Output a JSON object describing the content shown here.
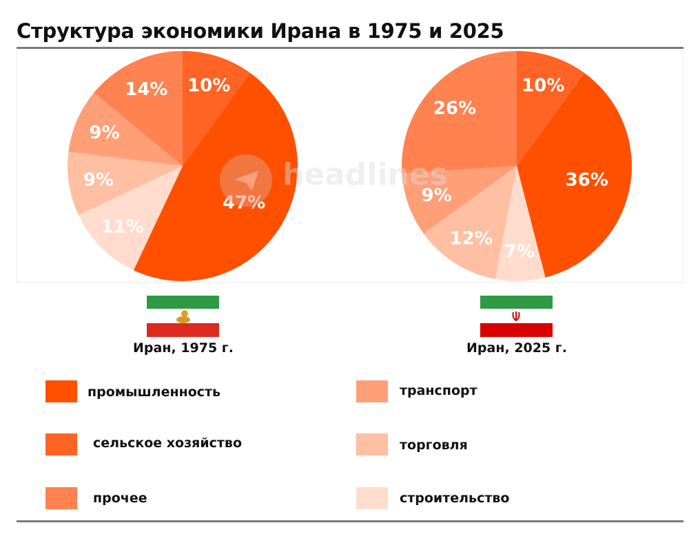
{
  "title": "Структура экономики Ирана в 1975 и 2025",
  "watermark": "headlines",
  "chart_data": {
    "type": "pie",
    "title": "Структура экономики Ирана в 1975 и 2025",
    "categories": [
      "сельское хозяйство",
      "промышленность",
      "строительство",
      "торговля",
      "транспорт",
      "прочее"
    ],
    "colors": {
      "промышленность": "#ff5000",
      "сельское хозяйство": "#ff6424",
      "прочее": "#ff8250",
      "транспорт": "#ff9f78",
      "торговля": "#ffbfa2",
      "строительство": "#ffdccd"
    },
    "series": [
      {
        "name": "Иран, 1975 г.",
        "values": [
          10,
          47,
          11,
          9,
          9,
          14
        ],
        "labels": [
          "10%",
          "47%",
          "11%",
          "9%",
          "9%",
          "14%"
        ]
      },
      {
        "name": "Иран, 2025 г.",
        "values": [
          10,
          36,
          7,
          12,
          9,
          26
        ],
        "labels": [
          "10%",
          "36%",
          "7%",
          "12%",
          "9%",
          "26%"
        ]
      }
    ],
    "legend_placement": "bottom"
  },
  "countries": [
    "Иран, 1975 г.",
    "Иран, 2025 г."
  ],
  "legend": [
    {
      "label": "промышленность",
      "color": "#ff5000"
    },
    {
      "label": "сельское хозяйство",
      "color": "#ff6424"
    },
    {
      "label": "прочее",
      "color": "#ff8250"
    },
    {
      "label": "транспорт",
      "color": "#ff9f78"
    },
    {
      "label": "торговля",
      "color": "#ffbfa2"
    },
    {
      "label": "строительство",
      "color": "#ffdccd"
    }
  ]
}
